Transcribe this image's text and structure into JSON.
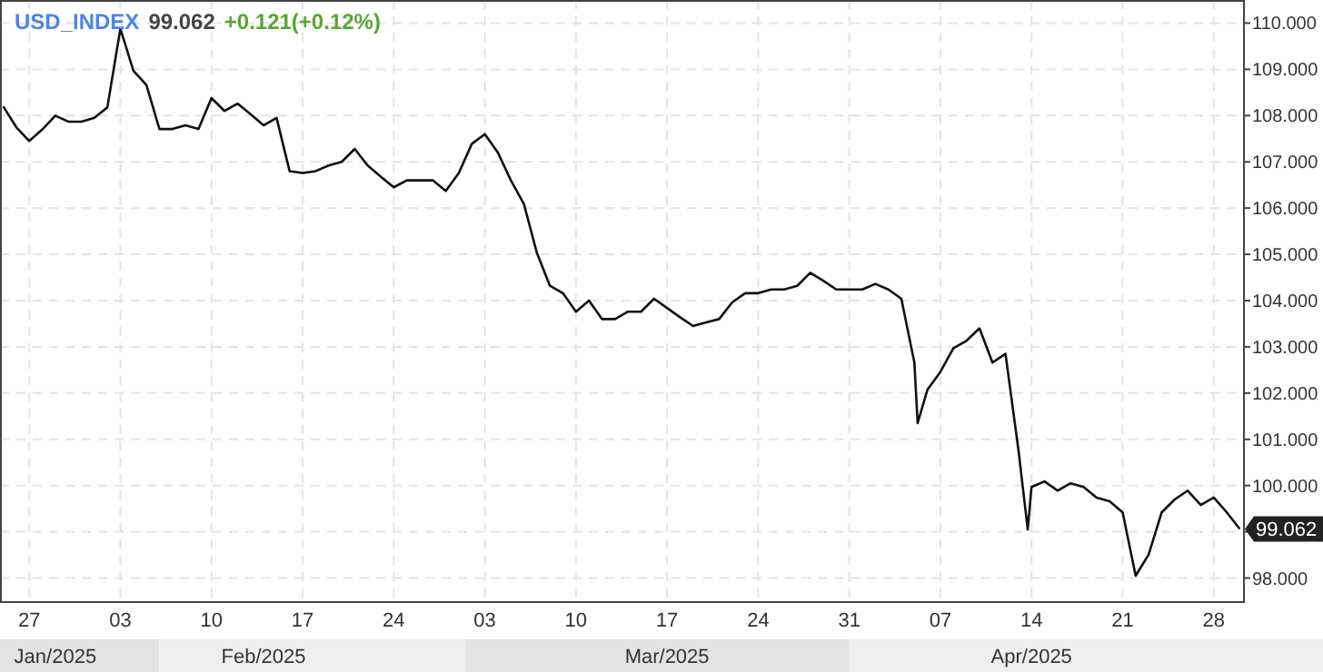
{
  "chart_data": {
    "type": "line",
    "title": "USD_INDEX",
    "subtitle": "99.062",
    "annotations": [
      "+0.121(+0.12%)",
      {
        "text": "99.062",
        "x": "2025-04-30",
        "y": 99.062
      }
    ],
    "xlim": [
      "2025-01-24T18:00",
      "2025-04-30T06:00"
    ],
    "xticks": [
      {
        "value": "2025-01-27",
        "label": "27"
      },
      {
        "value": "2025-02-03",
        "label": "03"
      },
      {
        "value": "2025-02-10",
        "label": "10"
      },
      {
        "value": "2025-02-17",
        "label": "17"
      },
      {
        "value": "2025-02-24",
        "label": "24"
      },
      {
        "value": "2025-03-03",
        "label": "03"
      },
      {
        "value": "2025-03-10",
        "label": "10"
      },
      {
        "value": "2025-03-17",
        "label": "17"
      },
      {
        "value": "2025-03-24",
        "label": "24"
      },
      {
        "value": "2025-03-31",
        "label": "31"
      },
      {
        "value": "2025-04-07",
        "label": "07"
      },
      {
        "value": "2025-04-14",
        "label": "14"
      },
      {
        "value": "2025-04-21",
        "label": "21"
      },
      {
        "value": "2025-04-28",
        "label": "28"
      }
    ],
    "x2lim": [
      "2025-01-24T18:00",
      "2025-04-30T06:00"
    ],
    "x2ticks": [
      {
        "value": "2025-01-29",
        "label": "Jan/2025"
      },
      {
        "value": "2025-02-14",
        "label": "Feb/2025"
      },
      {
        "value": "2025-03-17",
        "label": "Mar/2025"
      },
      {
        "value": "2025-04-14",
        "label": "Apr/2025"
      }
    ],
    "ylim": [
      97.5,
      110.5
    ],
    "yticks": [
      {
        "value": 98,
        "label": "98.000"
      },
      {
        "value": 99,
        "label": null
      },
      {
        "value": 100,
        "label": "100.000"
      },
      {
        "value": 101,
        "label": "101.000"
      },
      {
        "value": 102,
        "label": "102.000"
      },
      {
        "value": 103,
        "label": "103.000"
      },
      {
        "value": 104,
        "label": "104.000"
      },
      {
        "value": 105,
        "label": "105.000"
      },
      {
        "value": 106,
        "label": "106.000"
      },
      {
        "value": 107,
        "label": "107.000"
      },
      {
        "value": 108,
        "label": "108.000"
      },
      {
        "value": 109,
        "label": "109.000"
      },
      {
        "value": 110,
        "label": "110.000"
      }
    ],
    "grid": true,
    "marker": "none",
    "line_style": "solid",
    "series": [
      {
        "color": "#111111",
        "x": [
          "2025-01-25",
          "2025-01-26",
          "2025-01-27",
          "2025-01-28",
          "2025-01-29",
          "2025-01-30",
          "2025-01-31",
          "2025-02-01",
          "2025-02-02",
          "2025-02-03",
          "2025-02-04",
          "2025-02-05",
          "2025-02-06",
          "2025-02-07",
          "2025-02-08",
          "2025-02-09",
          "2025-02-10",
          "2025-02-11",
          "2025-02-12",
          "2025-02-13",
          "2025-02-14",
          "2025-02-15",
          "2025-02-16",
          "2025-02-17",
          "2025-02-18",
          "2025-02-19",
          "2025-02-20",
          "2025-02-21",
          "2025-02-22",
          "2025-02-23",
          "2025-02-24",
          "2025-02-25",
          "2025-02-26",
          "2025-02-27",
          "2025-02-28",
          "2025-03-01",
          "2025-03-02",
          "2025-03-03",
          "2025-03-04",
          "2025-03-05",
          "2025-03-06",
          "2025-03-07",
          "2025-03-08",
          "2025-03-09",
          "2025-03-10",
          "2025-03-11",
          "2025-03-12",
          "2025-03-13",
          "2025-03-14",
          "2025-03-15",
          "2025-03-16",
          "2025-03-17",
          "2025-03-18",
          "2025-03-19",
          "2025-03-20",
          "2025-03-21",
          "2025-03-22",
          "2025-03-23",
          "2025-03-24",
          "2025-03-25",
          "2025-03-26",
          "2025-03-27",
          "2025-03-28",
          "2025-03-29",
          "2025-03-30",
          "2025-03-31",
          "2025-04-01",
          "2025-04-02",
          "2025-04-03",
          "2025-04-04",
          "2025-04-05",
          "2025-04-05T06:00",
          "2025-04-06",
          "2025-04-07",
          "2025-04-08",
          "2025-04-09",
          "2025-04-10",
          "2025-04-11",
          "2025-04-12",
          "2025-04-13",
          "2025-04-13T17:00",
          "2025-04-14",
          "2025-04-15",
          "2025-04-16",
          "2025-04-17",
          "2025-04-18",
          "2025-04-19",
          "2025-04-20",
          "2025-04-21",
          "2025-04-22",
          "2025-04-23",
          "2025-04-24",
          "2025-04-25",
          "2025-04-26",
          "2025-04-27",
          "2025-04-28",
          "2025-04-29",
          "2025-04-30"
        ],
        "values": [
          108.2,
          107.75,
          107.45,
          107.7,
          108.0,
          107.87,
          107.87,
          107.95,
          108.18,
          109.88,
          108.97,
          108.66,
          107.71,
          107.71,
          107.79,
          107.71,
          108.38,
          108.1,
          108.26,
          108.03,
          107.79,
          107.95,
          106.8,
          106.76,
          106.8,
          106.92,
          107.0,
          107.28,
          106.92,
          106.68,
          106.45,
          106.6,
          106.6,
          106.6,
          106.37,
          106.76,
          107.39,
          107.6,
          107.2,
          106.6,
          106.09,
          105.03,
          104.32,
          104.16,
          103.76,
          104.0,
          103.6,
          103.6,
          103.76,
          103.76,
          104.04,
          103.84,
          103.64,
          103.45,
          103.53,
          103.6,
          103.96,
          104.16,
          104.16,
          104.24,
          104.24,
          104.32,
          104.6,
          104.43,
          104.24,
          104.24,
          104.24,
          104.36,
          104.24,
          104.04,
          102.66,
          101.35,
          102.07,
          102.46,
          102.97,
          103.13,
          103.4,
          102.66,
          102.85,
          100.76,
          99.05,
          99.97,
          100.09,
          99.89,
          100.05,
          99.97,
          99.74,
          99.66,
          99.42,
          98.05,
          98.51,
          99.42,
          99.7,
          99.89,
          99.58,
          99.74,
          99.42,
          99.062
        ]
      }
    ]
  }
}
